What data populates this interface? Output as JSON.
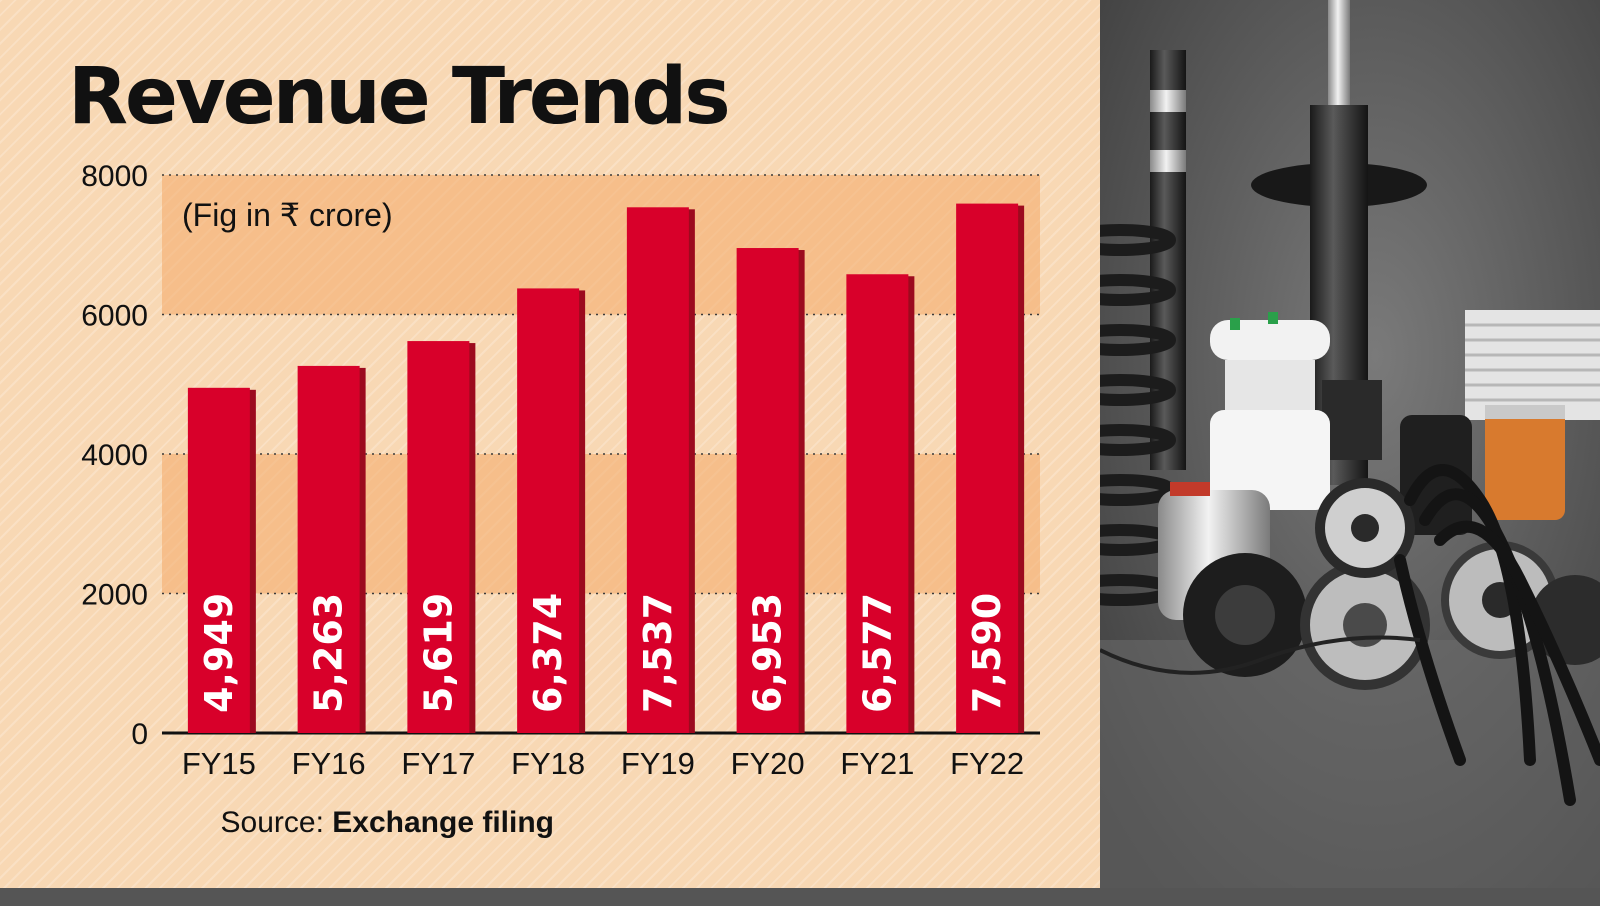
{
  "chart_data": {
    "type": "bar",
    "title": "Revenue Trends",
    "subtitle": "(Fig in ₹ crore)",
    "categories": [
      "FY15",
      "FY16",
      "FY17",
      "FY18",
      "FY19",
      "FY20",
      "FY21",
      "FY22"
    ],
    "values": [
      4949,
      5263,
      5619,
      6374,
      7537,
      6953,
      6577,
      7590
    ],
    "value_labels": [
      "4,949",
      "5,263",
      "5,619",
      "6,374",
      "7,537",
      "6,953",
      "6,577",
      "7,590"
    ],
    "yticks": [
      0,
      2000,
      4000,
      6000,
      8000
    ],
    "ylim": [
      0,
      8000
    ],
    "grid": true,
    "bar_color": "#d8002a",
    "bar_shadow_color": "#9c0a1e",
    "band_color": "#f4a968"
  },
  "source": {
    "label": "Source:",
    "value": "Exchange filing"
  },
  "photo": {
    "icon": "auto-parts-photo-icon"
  }
}
